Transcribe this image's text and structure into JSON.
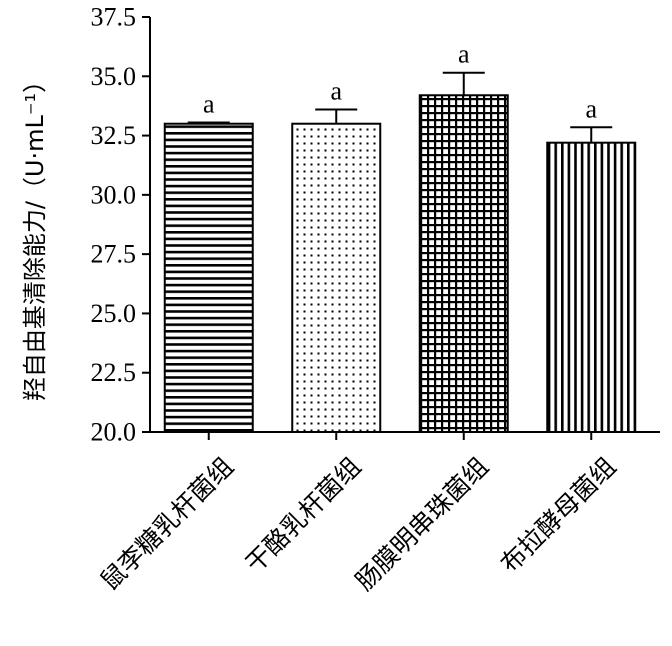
{
  "chart_data": {
    "type": "bar",
    "title": "",
    "xlabel": "",
    "ylabel": "羟自由基清除能力/（U·mL⁻¹）",
    "ylim": [
      20.0,
      37.5
    ],
    "yticks": [
      "20.0",
      "22.5",
      "25.0",
      "27.5",
      "30.0",
      "32.5",
      "35.0",
      "37.5"
    ],
    "categories": [
      "鼠李糖乳杆菌组",
      "干酪乳杆菌组",
      "肠膜明串珠菌组",
      "布拉酵母菌组"
    ],
    "values": [
      33.0,
      33.0,
      34.2,
      32.2
    ],
    "errors": [
      0.05,
      0.6,
      0.95,
      0.65
    ],
    "significance": [
      "a",
      "a",
      "a",
      "a"
    ],
    "patterns": [
      "horizontal-lines",
      "dots",
      "grid",
      "vertical-lines"
    ],
    "grid": false,
    "legend": "none"
  }
}
